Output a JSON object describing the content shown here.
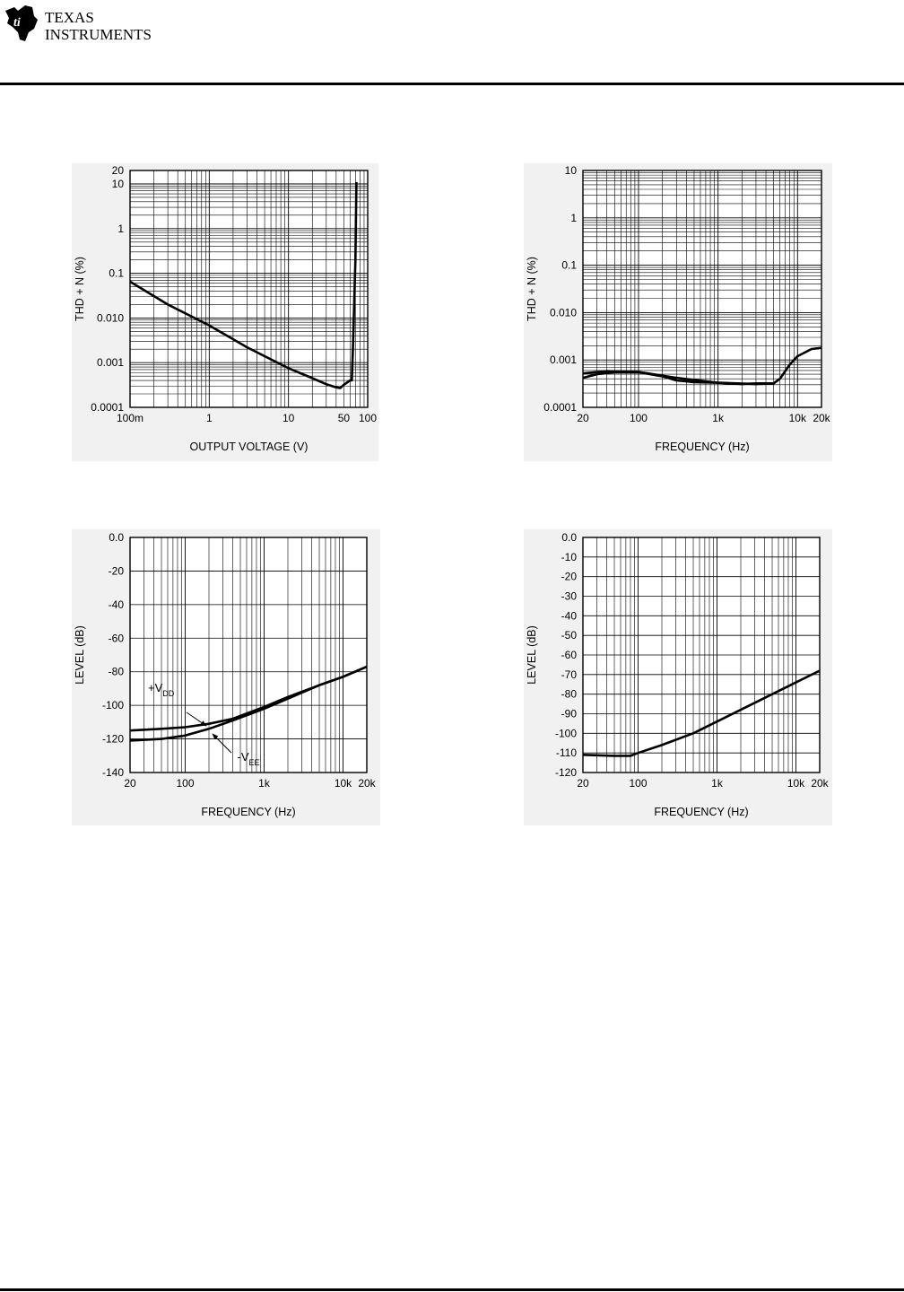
{
  "brand": {
    "line1": "TEXAS",
    "line2": "INSTRUMENTS"
  },
  "chart_data": [
    {
      "type": "line",
      "x_scale": "log",
      "y_scale": "log",
      "xlabel": "OUTPUT VOLTAGE (V)",
      "ylabel": "THD + N (%)",
      "xlim": [
        0.1,
        100
      ],
      "ylim": [
        0.0001,
        20
      ],
      "x_ticks": [
        {
          "v": 0.1,
          "label": "100m"
        },
        {
          "v": 1,
          "label": "1"
        },
        {
          "v": 10,
          "label": "10"
        },
        {
          "v": 50,
          "label": "50"
        },
        {
          "v": 100,
          "label": "100"
        }
      ],
      "y_ticks": [
        {
          "v": 0.0001,
          "label": "0.0001"
        },
        {
          "v": 0.001,
          "label": "0.001"
        },
        {
          "v": 0.01,
          "label": "0.010"
        },
        {
          "v": 0.1,
          "label": "0.1"
        },
        {
          "v": 1,
          "label": "1"
        },
        {
          "v": 10,
          "label": "10"
        },
        {
          "v": 20,
          "label": "20"
        }
      ],
      "grid": true,
      "series": [
        {
          "x": [
            0.1,
            0.3,
            1,
            3,
            10,
            20,
            30,
            40,
            45,
            50,
            60,
            63,
            65,
            70,
            72
          ],
          "y": [
            0.065,
            0.02,
            0.0068,
            0.0022,
            0.00075,
            0.00045,
            0.00033,
            0.00028,
            0.00027,
            0.00032,
            0.0004,
            0.0004,
            0.002,
            0.2,
            11
          ]
        }
      ],
      "annotations": []
    },
    {
      "type": "line",
      "x_scale": "log",
      "y_scale": "log",
      "xlabel": "FREQUENCY (Hz)",
      "ylabel": "THD + N (%)",
      "xlim": [
        20,
        20000
      ],
      "ylim": [
        0.0001,
        10
      ],
      "x_ticks": [
        {
          "v": 20,
          "label": "20"
        },
        {
          "v": 100,
          "label": "100"
        },
        {
          "v": 1000,
          "label": "1k"
        },
        {
          "v": 10000,
          "label": "10k"
        },
        {
          "v": 20000,
          "label": "20k"
        }
      ],
      "y_ticks": [
        {
          "v": 0.0001,
          "label": "0.0001"
        },
        {
          "v": 0.001,
          "label": "0.001"
        },
        {
          "v": 0.01,
          "label": "0.010"
        },
        {
          "v": 0.1,
          "label": "0.1"
        },
        {
          "v": 1,
          "label": "1"
        },
        {
          "v": 10,
          "label": "10"
        }
      ],
      "grid": true,
      "series": [
        {
          "x": [
            20,
            30,
            50,
            100,
            200,
            300,
            500,
            1000,
            2000,
            3000,
            5000,
            6000,
            8000,
            10000,
            15000,
            20000
          ],
          "y": [
            0.00042,
            0.0005,
            0.00055,
            0.00055,
            0.00045,
            0.00037,
            0.00034,
            0.00033,
            0.00031,
            0.00032,
            0.00032,
            0.0004,
            0.0008,
            0.0012,
            0.0017,
            0.0018
          ]
        },
        {
          "x": [
            20,
            40,
            100,
            300,
            1000,
            3000,
            5000
          ],
          "y": [
            0.00052,
            0.00058,
            0.00056,
            0.00042,
            0.00033,
            0.00031,
            0.00032
          ]
        }
      ],
      "annotations": []
    },
    {
      "type": "line",
      "x_scale": "log",
      "y_scale": "linear",
      "xlabel": "FREQUENCY (Hz)",
      "ylabel": "LEVEL (dB)",
      "xlim": [
        20,
        20000
      ],
      "ylim": [
        -140,
        0
      ],
      "x_ticks": [
        {
          "v": 20,
          "label": "20"
        },
        {
          "v": 100,
          "label": "100"
        },
        {
          "v": 1000,
          "label": "1k"
        },
        {
          "v": 10000,
          "label": "10k"
        },
        {
          "v": 20000,
          "label": "20k"
        }
      ],
      "y_ticks": [
        {
          "v": 0,
          "label": "0.0"
        },
        {
          "v": -20,
          "label": "-20"
        },
        {
          "v": -40,
          "label": "-40"
        },
        {
          "v": -60,
          "label": "-60"
        },
        {
          "v": -80,
          "label": "-80"
        },
        {
          "v": -100,
          "label": "-100"
        },
        {
          "v": -120,
          "label": "-120"
        },
        {
          "v": -140,
          "label": "-140"
        }
      ],
      "grid": true,
      "series": [
        {
          "name": "+VDD",
          "x": [
            20,
            50,
            100,
            200,
            400,
            1000,
            2000,
            5000,
            10000,
            20000
          ],
          "y": [
            -115,
            -114,
            -113,
            -111,
            -108,
            -101,
            -95,
            -88,
            -83,
            -77
          ]
        },
        {
          "name": "-VEE",
          "x": [
            20,
            50,
            100,
            200,
            400,
            1000,
            2000,
            5000,
            10000,
            20000
          ],
          "y": [
            -121,
            -120,
            -118,
            -114,
            -109,
            -102,
            -96,
            -88,
            -83,
            -77
          ]
        }
      ],
      "annotations": [
        {
          "main": "+V",
          "sub": "DD",
          "x": 20,
          "y": -92
        },
        {
          "main": "-V",
          "sub": "EE",
          "x": 300,
          "y": -133
        }
      ]
    },
    {
      "type": "line",
      "x_scale": "log",
      "y_scale": "linear",
      "xlabel": "FREQUENCY (Hz)",
      "ylabel": "LEVEL (dB)",
      "xlim": [
        20,
        20000
      ],
      "ylim": [
        -120,
        0
      ],
      "x_ticks": [
        {
          "v": 20,
          "label": "20"
        },
        {
          "v": 100,
          "label": "100"
        },
        {
          "v": 1000,
          "label": "1k"
        },
        {
          "v": 10000,
          "label": "10k"
        },
        {
          "v": 20000,
          "label": "20k"
        }
      ],
      "y_ticks": [
        {
          "v": 0,
          "label": "0.0"
        },
        {
          "v": -10,
          "label": "-10"
        },
        {
          "v": -20,
          "label": "-20"
        },
        {
          "v": -30,
          "label": "-30"
        },
        {
          "v": -40,
          "label": "-40"
        },
        {
          "v": -50,
          "label": "-50"
        },
        {
          "v": -60,
          "label": "-60"
        },
        {
          "v": -70,
          "label": "-70"
        },
        {
          "v": -80,
          "label": "-80"
        },
        {
          "v": -90,
          "label": "-90"
        },
        {
          "v": -100,
          "label": "-100"
        },
        {
          "v": -110,
          "label": "-110"
        },
        {
          "v": -120,
          "label": "-120"
        }
      ],
      "grid": true,
      "series": [
        {
          "x": [
            20,
            50,
            80,
            100,
            200,
            500,
            1000,
            2000,
            5000,
            10000,
            20000
          ],
          "y": [
            -111,
            -111.5,
            -111.5,
            -110,
            -106,
            -100,
            -94,
            -88,
            -80,
            -74,
            -68
          ]
        }
      ],
      "annotations": []
    }
  ]
}
